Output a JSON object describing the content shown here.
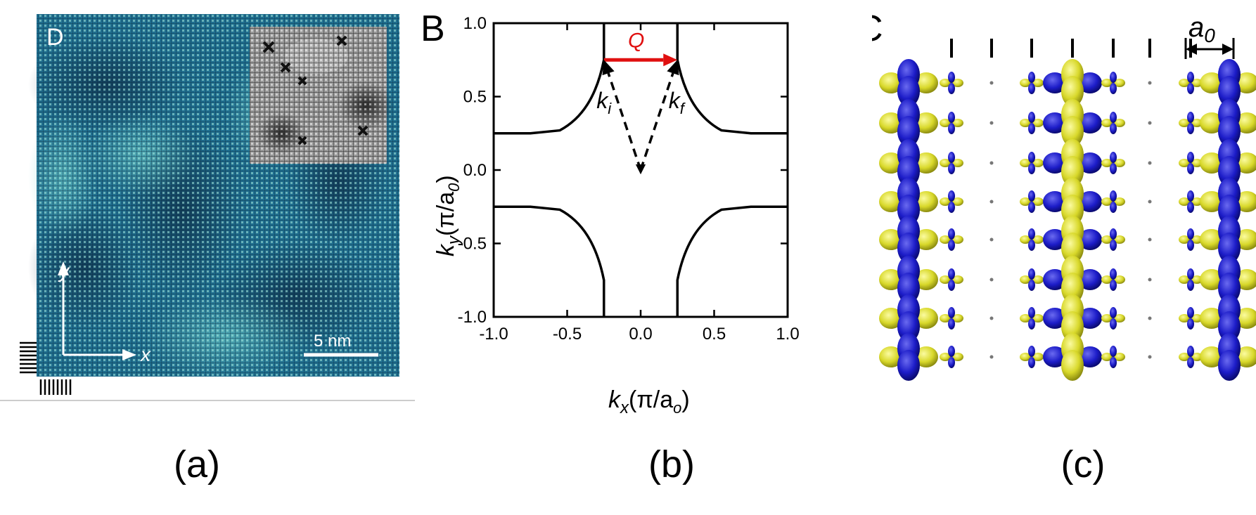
{
  "panel_a": {
    "letter": "D",
    "axis_x": "x",
    "axis_y": "y",
    "scalebar": "5 nm",
    "caption": "(a)",
    "colors": {
      "map_dark": "#123a55",
      "map_mid": "#1f6e8f",
      "map_light": "#8fd6d0"
    }
  },
  "panel_b": {
    "letter": "B",
    "caption": "(b)",
    "vector_label": "Q",
    "ki_label": "k",
    "ki_sub": "i",
    "kf_label": "k",
    "kf_sub": "f",
    "xlabel_main": "k",
    "xlabel_sub": "x",
    "xlabel_unit_open": "(π/a",
    "xlabel_unit_sub": "o",
    "xlabel_unit_close": ")",
    "ylabel_main": "k",
    "ylabel_sub": "y",
    "ylabel_unit_open": "(π/a",
    "ylabel_unit_sub": "0",
    "ylabel_unit_close": ")",
    "colors": {
      "q_arrow": "#e01010",
      "lines": "#000000"
    }
  },
  "panel_c": {
    "letter": "C",
    "lattice_label": "a",
    "lattice_sub": "0",
    "caption": "(c)",
    "colors": {
      "blue_orbital": "#1c1cc8",
      "yellow_orbital": "#d8d82a"
    }
  },
  "chart_data": {
    "type": "line",
    "title": "",
    "xlabel": "kx(π/ao)",
    "ylabel": "ky(π/a0)",
    "xlim": [
      -1.0,
      1.0
    ],
    "ylim": [
      -1.0,
      1.0
    ],
    "xticks": [
      "-1.0",
      "-0.5",
      "0.0",
      "0.5",
      "1.0"
    ],
    "yticks": [
      "-1.0",
      "-0.5",
      "0.0",
      "0.5",
      "1.0"
    ],
    "grid": false,
    "series": [
      {
        "values": [
          [
            -0.25,
            1.0
          ],
          [
            -0.25,
            0.75
          ],
          [
            -0.3,
            0.5
          ],
          [
            -0.4,
            0.35
          ],
          [
            -0.55,
            0.27
          ],
          [
            -0.75,
            0.25
          ],
          [
            -1.0,
            0.25
          ]
        ]
      },
      {
        "values": [
          [
            0.25,
            1.0
          ],
          [
            0.25,
            0.75
          ],
          [
            0.3,
            0.5
          ],
          [
            0.4,
            0.35
          ],
          [
            0.55,
            0.27
          ],
          [
            0.75,
            0.25
          ],
          [
            1.0,
            0.25
          ]
        ]
      },
      {
        "values": [
          [
            -0.25,
            -1.0
          ],
          [
            -0.25,
            -0.75
          ],
          [
            -0.3,
            -0.5
          ],
          [
            -0.4,
            -0.35
          ],
          [
            -0.55,
            -0.27
          ],
          [
            -0.75,
            -0.25
          ],
          [
            -1.0,
            -0.25
          ]
        ]
      },
      {
        "values": [
          [
            0.25,
            -1.0
          ],
          [
            0.25,
            -0.75
          ],
          [
            0.3,
            -0.5
          ],
          [
            0.4,
            -0.35
          ],
          [
            0.55,
            -0.27
          ],
          [
            0.75,
            -0.25
          ],
          [
            1.0,
            -0.25
          ]
        ]
      }
    ],
    "annotations": [
      {
        "label": "Q",
        "from": [
          -0.25,
          0.75
        ],
        "to": [
          0.25,
          0.75
        ],
        "color": "#e01010"
      },
      {
        "label": "ki",
        "from": [
          0.0,
          0.0
        ],
        "to": [
          -0.25,
          0.75
        ],
        "style": "dashed"
      },
      {
        "label": "kf",
        "from": [
          0.0,
          0.0
        ],
        "to": [
          0.25,
          0.75
        ],
        "style": "dashed"
      }
    ]
  }
}
